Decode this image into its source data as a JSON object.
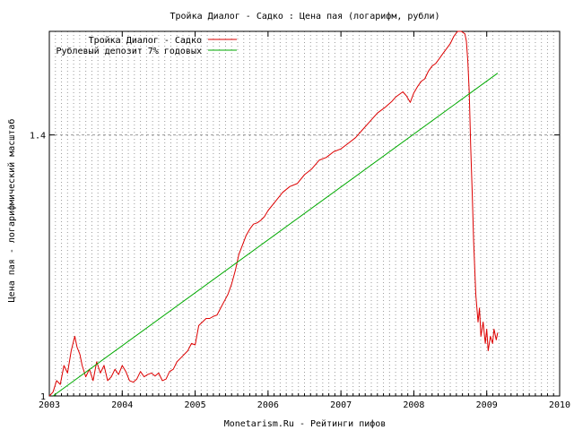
{
  "chart_data": {
    "type": "line",
    "title": "Тройка Диалог - Садко : Цена пая (логарифм, рубли)",
    "xlabel": "Monetarism.Ru - Рейтинги пифов",
    "ylabel": "Цена пая - логарифмический масштаб",
    "x_range": [
      2003,
      2010
    ],
    "y_scale": "log",
    "y_range": [
      1.0,
      1.6
    ],
    "x_ticks": [
      "2003",
      "2004",
      "2005",
      "2006",
      "2007",
      "2008",
      "2009",
      "2010"
    ],
    "y_ticks": [
      "1",
      "1.4"
    ],
    "grid": "vertical dotted lines every month, horizontal dashed at y ticks",
    "legend_position": "top-left",
    "series": [
      {
        "name": "Тройка Диалог - Садко",
        "color": "#dd0000",
        "x": [
          2003.0,
          2003.05,
          2003.1,
          2003.15,
          2003.2,
          2003.25,
          2003.3,
          2003.35,
          2003.38,
          2003.42,
          2003.45,
          2003.5,
          2003.55,
          2003.6,
          2003.65,
          2003.7,
          2003.75,
          2003.8,
          2003.85,
          2003.9,
          2003.95,
          2004.0,
          2004.05,
          2004.1,
          2004.15,
          2004.2,
          2004.25,
          2004.3,
          2004.35,
          2004.4,
          2004.45,
          2004.5,
          2004.55,
          2004.6,
          2004.65,
          2004.7,
          2004.75,
          2004.8,
          2004.85,
          2004.9,
          2004.95,
          2005.0,
          2005.05,
          2005.1,
          2005.15,
          2005.2,
          2005.25,
          2005.3,
          2005.35,
          2005.4,
          2005.45,
          2005.5,
          2005.55,
          2005.6,
          2005.65,
          2005.7,
          2005.75,
          2005.8,
          2005.85,
          2005.9,
          2005.95,
          2006.0,
          2006.1,
          2006.2,
          2006.3,
          2006.4,
          2006.5,
          2006.6,
          2006.7,
          2006.8,
          2006.9,
          2007.0,
          2007.1,
          2007.2,
          2007.3,
          2007.4,
          2007.5,
          2007.6,
          2007.7,
          2007.75,
          2007.8,
          2007.85,
          2007.9,
          2007.95,
          2008.0,
          2008.05,
          2008.1,
          2008.15,
          2008.2,
          2008.25,
          2008.3,
          2008.35,
          2008.4,
          2008.45,
          2008.5,
          2008.55,
          2008.6,
          2008.65,
          2008.7,
          2008.72,
          2008.74,
          2008.76,
          2008.78,
          2008.8,
          2008.82,
          2008.85,
          2008.88,
          2008.9,
          2008.92,
          2008.95,
          2008.98,
          2009.0,
          2009.02,
          2009.05,
          2009.08,
          2009.1,
          2009.13,
          2009.15
        ],
        "y": [
          1.0,
          1.005,
          1.02,
          1.015,
          1.04,
          1.03,
          1.06,
          1.08,
          1.065,
          1.055,
          1.04,
          1.025,
          1.035,
          1.02,
          1.045,
          1.03,
          1.04,
          1.02,
          1.025,
          1.035,
          1.028,
          1.04,
          1.032,
          1.02,
          1.018,
          1.022,
          1.032,
          1.025,
          1.028,
          1.03,
          1.026,
          1.03,
          1.02,
          1.022,
          1.032,
          1.035,
          1.045,
          1.05,
          1.055,
          1.06,
          1.07,
          1.068,
          1.095,
          1.1,
          1.105,
          1.105,
          1.108,
          1.11,
          1.12,
          1.13,
          1.14,
          1.155,
          1.175,
          1.2,
          1.215,
          1.23,
          1.24,
          1.248,
          1.25,
          1.254,
          1.26,
          1.27,
          1.285,
          1.3,
          1.31,
          1.315,
          1.33,
          1.34,
          1.355,
          1.36,
          1.37,
          1.375,
          1.385,
          1.395,
          1.41,
          1.425,
          1.44,
          1.45,
          1.462,
          1.47,
          1.475,
          1.48,
          1.472,
          1.46,
          1.478,
          1.49,
          1.5,
          1.505,
          1.52,
          1.53,
          1.535,
          1.545,
          1.555,
          1.565,
          1.575,
          1.59,
          1.6,
          1.6,
          1.595,
          1.58,
          1.54,
          1.48,
          1.38,
          1.3,
          1.22,
          1.14,
          1.1,
          1.12,
          1.08,
          1.1,
          1.07,
          1.09,
          1.06,
          1.08,
          1.07,
          1.09,
          1.075,
          1.085
        ]
      },
      {
        "name": "Рублевый депозит 7% годовых",
        "color": "#00aa00",
        "x": [
          2003.05,
          2009.15
        ],
        "y": [
          1.0,
          1.516
        ]
      }
    ]
  }
}
